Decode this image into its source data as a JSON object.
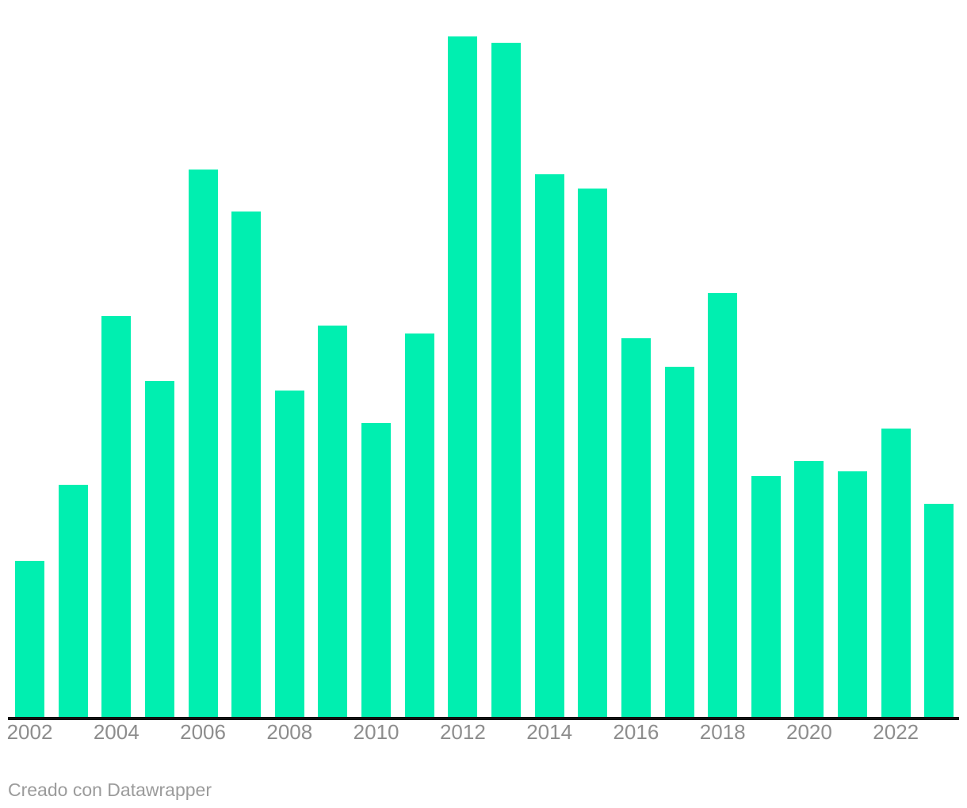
{
  "attribution": {
    "text": "Creado con Datawrapper"
  },
  "colors": {
    "bar": "#00efb0",
    "axis_line": "#111111",
    "tick_label": "#8d8d8d",
    "attribution_text": "#9b9b9b",
    "background": "#ffffff"
  },
  "chart_data": {
    "type": "bar",
    "title": "",
    "xlabel": "",
    "ylabel": "",
    "categories": [
      "2002",
      "2003",
      "2004",
      "2005",
      "2006",
      "2007",
      "2008",
      "2009",
      "2010",
      "2011",
      "2012",
      "2013",
      "2014",
      "2015",
      "2016",
      "2017",
      "2018",
      "2019",
      "2020",
      "2021",
      "2022",
      "2023"
    ],
    "values": [
      197,
      293,
      506,
      424,
      691,
      638,
      412,
      494,
      371,
      484,
      859,
      851,
      685,
      667,
      478,
      442,
      535,
      304,
      323,
      310,
      364,
      269
    ],
    "value_unit": "relative bar height (no y-axis labels shown)",
    "ylim": [
      0,
      859
    ],
    "grid": false,
    "legend": false,
    "y_axis_visible": false,
    "x_tick_labels": [
      "2002",
      "2004",
      "2006",
      "2008",
      "2010",
      "2012",
      "2014",
      "2016",
      "2018",
      "2020",
      "2022"
    ],
    "x_tick_bar_indices": [
      0,
      2,
      4,
      6,
      8,
      10,
      12,
      14,
      16,
      18,
      20
    ]
  }
}
